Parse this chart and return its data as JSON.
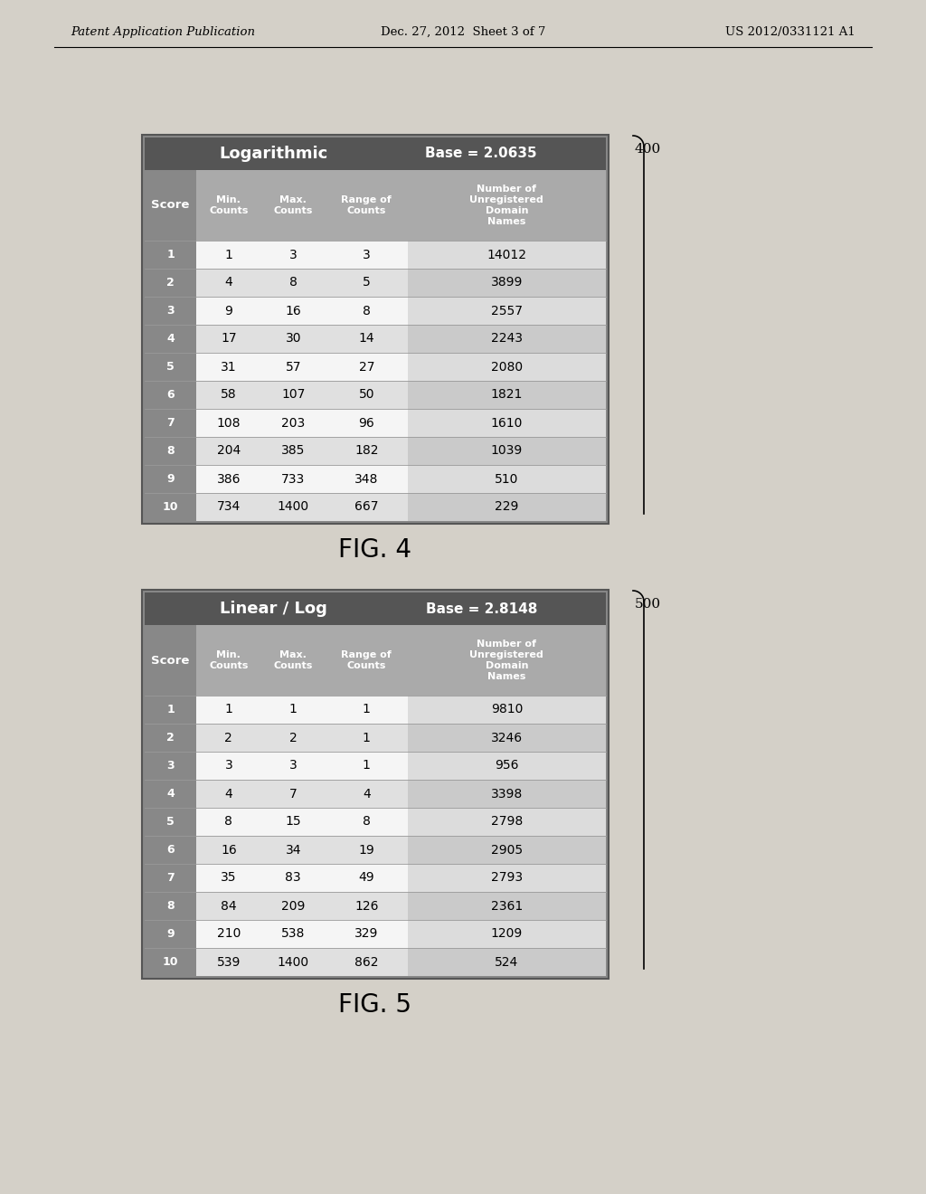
{
  "page_header_left": "Patent Application Publication",
  "page_header_center": "Dec. 27, 2012  Sheet 3 of 7",
  "page_header_right": "US 2012/0331121 A1",
  "fig4": {
    "label": "400",
    "title_left": "Logarithmic",
    "title_right": "Base = 2.0635",
    "fig_caption": "FIG. 4",
    "col_headers": [
      "Score",
      "Min.\nCounts",
      "Max.\nCounts",
      "Range of\nCounts",
      "Number of\nUnregistered\nDomain\nNames"
    ],
    "rows": [
      [
        "1",
        "1",
        "3",
        "3",
        "14012"
      ],
      [
        "2",
        "4",
        "8",
        "5",
        "3899"
      ],
      [
        "3",
        "9",
        "16",
        "8",
        "2557"
      ],
      [
        "4",
        "17",
        "30",
        "14",
        "2243"
      ],
      [
        "5",
        "31",
        "57",
        "27",
        "2080"
      ],
      [
        "6",
        "58",
        "107",
        "50",
        "1821"
      ],
      [
        "7",
        "108",
        "203",
        "96",
        "1610"
      ],
      [
        "8",
        "204",
        "385",
        "182",
        "1039"
      ],
      [
        "9",
        "386",
        "733",
        "348",
        "510"
      ],
      [
        "10",
        "734",
        "1400",
        "667",
        "229"
      ]
    ]
  },
  "fig5": {
    "label": "500",
    "title_left": "Linear / Log",
    "title_right": "Base = 2.8148",
    "fig_caption": "FIG. 5",
    "col_headers": [
      "Score",
      "Min.\nCounts",
      "Max.\nCounts",
      "Range of\nCounts",
      "Number of\nUnregistered\nDomain\nNames"
    ],
    "rows": [
      [
        "1",
        "1",
        "1",
        "1",
        "9810"
      ],
      [
        "2",
        "2",
        "2",
        "1",
        "3246"
      ],
      [
        "3",
        "3",
        "3",
        "1",
        "956"
      ],
      [
        "4",
        "4",
        "7",
        "4",
        "3398"
      ],
      [
        "5",
        "8",
        "15",
        "8",
        "2798"
      ],
      [
        "6",
        "16",
        "34",
        "19",
        "2905"
      ],
      [
        "7",
        "35",
        "83",
        "49",
        "2793"
      ],
      [
        "8",
        "84",
        "209",
        "126",
        "2361"
      ],
      [
        "9",
        "210",
        "538",
        "329",
        "1209"
      ],
      [
        "10",
        "539",
        "1400",
        "862",
        "524"
      ]
    ]
  },
  "colors": {
    "page_bg": "#d4d0c8",
    "outer_border": "#555555",
    "outer_bg": "#888888",
    "title_bar_bg": "#555555",
    "title_text": "#ffffff",
    "header_bg": "#aaaaaa",
    "header_text": "#ffffff",
    "score_col_bg": "#888888",
    "score_col_text": "#ffffff",
    "row_light": "#f5f5f5",
    "row_medium": "#e0e0e0",
    "row_last_col_light": "#dcdcdc",
    "row_last_col_dark": "#cacaca",
    "cell_text": "#000000",
    "page_text": "#000000",
    "fig_caption_color": "#000000",
    "divider": "#999999"
  }
}
